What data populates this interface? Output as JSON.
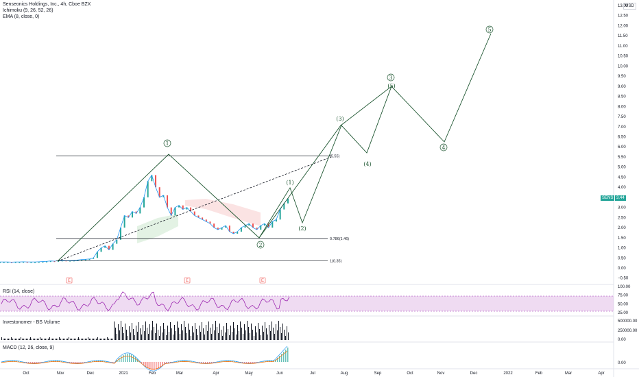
{
  "header": {
    "title": "Senseonics Holdings, Inc., 4h, Cboe BZX",
    "indicator_1": "Ichimoku (9, 26, 52, 26)",
    "indicator_2": "EMA (8, close, 0)"
  },
  "currency": "USD",
  "ticker": {
    "symbol": "SENS",
    "price": "3.44"
  },
  "panes": {
    "rsi_label": "RSI (14, close)",
    "volume_label": "Investonomer - BS Volume",
    "macd_label": "MACD (12, 26, close, 9)"
  },
  "colors": {
    "wave_green": "#1e5631",
    "up": "#ef5350",
    "down": "#26a69a",
    "rsi": "#9c27b0",
    "rsi_band": "#e1bee7",
    "ema": "#2196f3",
    "fib_line": "#131722"
  },
  "chart_data": {
    "type": "line",
    "price_axis": [
      "13.00",
      "12.50",
      "12.00",
      "11.50",
      "11.00",
      "10.50",
      "10.00",
      "9.50",
      "9.00",
      "8.50",
      "8.00",
      "7.50",
      "7.00",
      "6.50",
      "6.00",
      "5.50",
      "5.00",
      "4.50",
      "4.00",
      "3.50",
      "3.00",
      "2.50",
      "2.00",
      "1.50",
      "1.00",
      "0.50",
      "0.00",
      "−0.50"
    ],
    "rsi_axis": [
      "100.00",
      "75.00",
      "50.00",
      "25.00"
    ],
    "volume_axis": [
      "500000.00",
      "250000.00",
      "0.00"
    ],
    "macd_axis": [
      "0.00"
    ],
    "x_labels": [
      "Oct",
      "Nov",
      "Dec",
      "2021",
      "Feb",
      "Mar",
      "Apr",
      "May",
      "Jun",
      "Jul",
      "Aug",
      "Sep",
      "Oct",
      "Nov",
      "Dec",
      "2022",
      "Feb",
      "Mar",
      "Apr"
    ],
    "fib_levels": [
      {
        "label": "(5.55)",
        "value": 5.55
      },
      {
        "label": "0.786(1.46)",
        "value": 1.46
      },
      {
        "label": "1(0.35)",
        "value": 0.35
      }
    ],
    "earnings_markers": [
      "E",
      "E",
      "E"
    ],
    "wave_labels": [
      "1",
      "2",
      "(1)",
      "(2)",
      "(3)",
      "(4)",
      "(5)",
      "3",
      "4",
      "5"
    ],
    "projection_path": [
      {
        "t": 0.0,
        "v": 0.35
      },
      {
        "t": 0.37,
        "v": 5.55
      },
      {
        "t": 0.64,
        "v": 1.46
      },
      {
        "t": 0.75,
        "v": 3.95
      },
      {
        "t": 0.79,
        "v": 2.3
      },
      {
        "t": 0.89,
        "v": 7.1
      },
      {
        "t": 0.97,
        "v": 5.4
      },
      {
        "t": 1.09,
        "v": 9.0
      },
      {
        "t": 1.26,
        "v": 6.2
      },
      {
        "t": 1.38,
        "v": 11.6
      }
    ],
    "price_series": [
      0.3,
      0.3,
      0.3,
      0.29,
      0.3,
      0.3,
      0.31,
      0.3,
      0.3,
      0.3,
      0.31,
      0.32,
      0.33,
      0.35,
      0.34,
      0.36,
      0.38,
      0.36,
      0.37,
      0.38,
      0.4,
      0.42,
      0.43,
      0.45,
      0.5,
      0.8,
      1.0,
      1.1,
      0.9,
      1.2,
      1.4,
      2.0,
      2.6,
      2.5,
      2.8,
      2.7,
      3.0,
      3.5,
      4.3,
      4.6,
      4.0,
      3.5,
      3.6,
      3.0,
      2.6,
      3.0,
      3.1,
      2.9,
      3.0,
      2.8,
      2.6,
      2.5,
      2.4,
      2.3,
      2.2,
      2.0,
      1.9,
      2.0,
      2.1,
      1.8,
      1.7,
      1.8,
      2.0,
      2.1,
      2.2,
      2.0,
      1.9,
      2.1,
      2.2,
      2.0,
      2.3,
      2.4,
      2.9,
      3.2,
      3.44
    ]
  }
}
